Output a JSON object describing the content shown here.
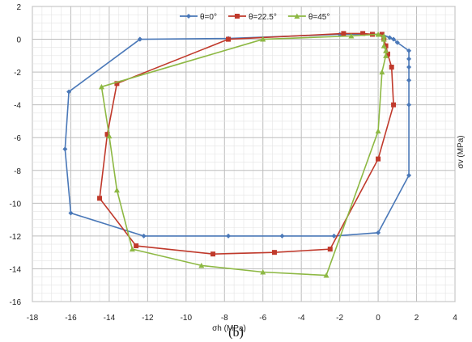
{
  "caption": "(b)",
  "chart_data": {
    "type": "line",
    "xlabel": "σh (MPa)",
    "ylabel": "σv (MPa)",
    "xlim": [
      -18,
      4
    ],
    "ylim": [
      -16,
      2
    ],
    "xticks": [
      -18,
      -16,
      -14,
      -12,
      -10,
      -8,
      -6,
      -4,
      -2,
      0,
      2,
      4
    ],
    "yticks": [
      -16,
      -14,
      -12,
      -10,
      -8,
      -6,
      -4,
      -2,
      0,
      2
    ],
    "grid": true,
    "legend": "top-center",
    "series": [
      {
        "name": "θ=0°",
        "color": "#4a78b8",
        "marker": "diamond",
        "points": [
          [
            -12.4,
            0.0
          ],
          [
            -7.8,
            0.05
          ],
          [
            -2.0,
            0.3
          ],
          [
            0.2,
            0.3
          ],
          [
            0.6,
            0.1
          ],
          [
            0.8,
            0.0
          ],
          [
            1.0,
            -0.2
          ],
          [
            1.6,
            -0.7
          ],
          [
            1.6,
            -1.2
          ],
          [
            1.6,
            -1.7
          ],
          [
            1.6,
            -2.5
          ],
          [
            1.6,
            -4.0
          ],
          [
            1.6,
            -8.3
          ],
          [
            0.0,
            -11.8
          ],
          [
            -2.3,
            -12.0
          ],
          [
            -5.0,
            -12.0
          ],
          [
            -7.8,
            -12.0
          ],
          [
            -12.2,
            -12.0
          ],
          [
            -16.0,
            -10.6
          ],
          [
            -16.3,
            -6.7
          ],
          [
            -16.1,
            -3.2
          ],
          [
            -12.4,
            0.0
          ]
        ]
      },
      {
        "name": "θ=22.5°",
        "color": "#c0392b",
        "marker": "square",
        "points": [
          [
            -7.8,
            0.0
          ],
          [
            -1.8,
            0.35
          ],
          [
            -0.8,
            0.35
          ],
          [
            -0.3,
            0.3
          ],
          [
            0.2,
            0.3
          ],
          [
            0.3,
            0.0
          ],
          [
            0.4,
            -0.4
          ],
          [
            0.5,
            -0.9
          ],
          [
            0.7,
            -1.7
          ],
          [
            0.8,
            -4.0
          ],
          [
            0.0,
            -7.3
          ],
          [
            -2.5,
            -12.8
          ],
          [
            -5.4,
            -13.0
          ],
          [
            -8.6,
            -13.1
          ],
          [
            -12.6,
            -12.6
          ],
          [
            -14.5,
            -9.7
          ],
          [
            -14.1,
            -5.8
          ],
          [
            -13.6,
            -2.7
          ],
          [
            -7.8,
            0.0
          ]
        ]
      },
      {
        "name": "θ=45°",
        "color": "#8db843",
        "marker": "triangle",
        "points": [
          [
            -6.0,
            0.0
          ],
          [
            -1.4,
            0.2
          ],
          [
            0.0,
            0.3
          ],
          [
            0.3,
            0.2
          ],
          [
            0.3,
            0.0
          ],
          [
            0.3,
            -0.4
          ],
          [
            0.4,
            -0.7
          ],
          [
            0.4,
            -1.0
          ],
          [
            0.2,
            -2.0
          ],
          [
            0.0,
            -5.6
          ],
          [
            -2.7,
            -14.4
          ],
          [
            -6.0,
            -14.2
          ],
          [
            -9.2,
            -13.8
          ],
          [
            -12.8,
            -12.8
          ],
          [
            -13.6,
            -9.2
          ],
          [
            -14.0,
            -5.9
          ],
          [
            -14.4,
            -2.9
          ],
          [
            -6.0,
            0.0
          ]
        ]
      }
    ]
  }
}
